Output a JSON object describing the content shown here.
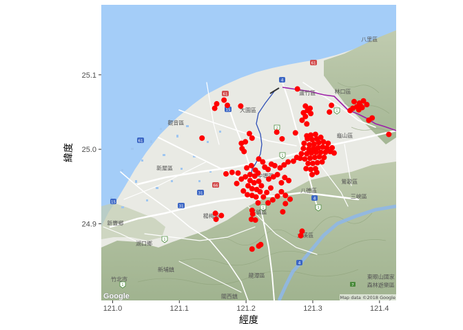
{
  "axes": {
    "x_title": "經度",
    "y_title": "緯度",
    "x_ticks": [
      121.0,
      121.1,
      121.2,
      121.3,
      121.4
    ],
    "x_tick_labels": [
      "121.0",
      "121.1",
      "121.2",
      "121.3",
      "121.4"
    ],
    "y_ticks": [
      24.9,
      25.0,
      25.1
    ],
    "y_tick_labels": [
      "24.9",
      "25.0",
      "25.1"
    ],
    "xlim": [
      120.983,
      121.425
    ],
    "ylim": [
      24.797,
      25.194
    ]
  },
  "basemap": {
    "attribution": "Map data ©2018 Google",
    "logo": "Google",
    "colors": {
      "sea": "#a4cdf8",
      "land": "#e9eae4",
      "hills": "#a9bb95",
      "road": "#ffffff",
      "river": "#2e4fb6",
      "rail": "#9d1ea8",
      "points": "#ff0000"
    },
    "place_labels": [
      {
        "text": "八里區",
        "lon": 121.385,
        "lat": 25.145
      },
      {
        "text": "林口區",
        "lon": 121.345,
        "lat": 25.075
      },
      {
        "text": "龜山區",
        "lon": 121.348,
        "lat": 25.016
      },
      {
        "text": "大園區",
        "lon": 121.203,
        "lat": 25.05
      },
      {
        "text": "蘆竹區",
        "lon": 121.292,
        "lat": 25.073
      },
      {
        "text": "觀音區",
        "lon": 121.095,
        "lat": 25.033
      },
      {
        "text": "新屋區",
        "lon": 121.078,
        "lat": 24.972
      },
      {
        "text": "中壢區",
        "lon": 121.229,
        "lat": 24.962
      },
      {
        "text": "八德區",
        "lon": 121.294,
        "lat": 24.942
      },
      {
        "text": "鶯歌區",
        "lon": 121.355,
        "lat": 24.954
      },
      {
        "text": "三峽區",
        "lon": 121.369,
        "lat": 24.934
      },
      {
        "text": "楊梅區",
        "lon": 121.148,
        "lat": 24.908
      },
      {
        "text": "平鎮區",
        "lon": 121.219,
        "lat": 24.913
      },
      {
        "text": "新豐鄉",
        "lon": 121.004,
        "lat": 24.898
      },
      {
        "text": "湖口鄉",
        "lon": 121.047,
        "lat": 24.871
      },
      {
        "text": "大溪區",
        "lon": 121.289,
        "lat": 24.882
      },
      {
        "text": "新埔鎮",
        "lon": 121.08,
        "lat": 24.836
      },
      {
        "text": "龍潭區",
        "lon": 121.216,
        "lat": 24.828
      },
      {
        "text": "關西鎮",
        "lon": 121.175,
        "lat": 24.8
      },
      {
        "text": "竹北市",
        "lon": 121.01,
        "lat": 24.823
      },
      {
        "text": "東眼山國家",
        "lon": 121.402,
        "lat": 24.826
      },
      {
        "text": "森林遊樂區",
        "lon": 121.402,
        "lat": 24.815
      }
    ]
  },
  "chart_data": {
    "type": "scatter",
    "title": "",
    "xlabel": "經度",
    "ylabel": "緯度",
    "xlim": [
      120.983,
      121.425
    ],
    "ylim": [
      24.797,
      25.194
    ],
    "grid": false,
    "legend": "none",
    "point_color": "#ff0000",
    "points": [
      [
        121.277,
        25.081
      ],
      [
        121.156,
        25.061
      ],
      [
        121.167,
        25.066
      ],
      [
        121.172,
        25.059
      ],
      [
        121.153,
        25.055
      ],
      [
        121.192,
        25.058
      ],
      [
        121.289,
        25.058
      ],
      [
        121.292,
        25.052
      ],
      [
        121.296,
        25.055
      ],
      [
        121.286,
        25.049
      ],
      [
        121.297,
        25.048
      ],
      [
        121.289,
        25.044
      ],
      [
        121.284,
        25.039
      ],
      [
        121.291,
        25.034
      ],
      [
        121.325,
        25.05
      ],
      [
        121.328,
        25.059
      ],
      [
        121.362,
        25.064
      ],
      [
        121.366,
        25.057
      ],
      [
        121.37,
        25.062
      ],
      [
        121.372,
        25.058
      ],
      [
        121.376,
        25.065
      ],
      [
        121.36,
        25.055
      ],
      [
        121.356,
        25.052
      ],
      [
        121.369,
        25.053
      ],
      [
        121.374,
        25.056
      ],
      [
        121.381,
        25.06
      ],
      [
        121.384,
        25.039
      ],
      [
        121.389,
        25.042
      ],
      [
        121.414,
        25.02
      ],
      [
        121.134,
        25.015
      ],
      [
        121.209,
        25.015
      ],
      [
        121.205,
        25.021
      ],
      [
        121.193,
        25.008
      ],
      [
        121.199,
        25.01
      ],
      [
        121.194,
        25.001
      ],
      [
        121.197,
        24.997
      ],
      [
        121.246,
        25.023
      ],
      [
        121.254,
        25.014
      ],
      [
        121.274,
        25.022
      ],
      [
        121.291,
        25.018
      ],
      [
        121.297,
        25.019
      ],
      [
        121.304,
        25.02
      ],
      [
        121.292,
        25.014
      ],
      [
        121.299,
        25.013
      ],
      [
        121.306,
        25.014
      ],
      [
        121.312,
        25.016
      ],
      [
        121.287,
        25.008
      ],
      [
        121.295,
        25.006
      ],
      [
        121.302,
        25.007
      ],
      [
        121.309,
        25.009
      ],
      [
        121.316,
        25.01
      ],
      [
        121.323,
        25.008
      ],
      [
        121.286,
        25.001
      ],
      [
        121.294,
        25.0
      ],
      [
        121.301,
        25.001
      ],
      [
        121.308,
        25.002
      ],
      [
        121.315,
        25.003
      ],
      [
        121.321,
        25.002
      ],
      [
        121.329,
        25.002
      ],
      [
        121.283,
        24.994
      ],
      [
        121.291,
        24.994
      ],
      [
        121.298,
        24.995
      ],
      [
        121.305,
        24.996
      ],
      [
        121.312,
        24.996
      ],
      [
        121.319,
        24.996
      ],
      [
        121.326,
        24.997
      ],
      [
        121.332,
        24.995
      ],
      [
        121.281,
        24.988
      ],
      [
        121.288,
        24.987
      ],
      [
        121.296,
        24.988
      ],
      [
        121.303,
        24.989
      ],
      [
        121.31,
        24.99
      ],
      [
        121.317,
        24.989
      ],
      [
        121.293,
        24.981
      ],
      [
        121.3,
        24.981
      ],
      [
        121.307,
        24.982
      ],
      [
        121.314,
        24.983
      ],
      [
        121.29,
        24.974
      ],
      [
        121.297,
        24.973
      ],
      [
        121.304,
        24.974
      ],
      [
        121.299,
        24.966
      ],
      [
        121.306,
        24.969
      ],
      [
        121.276,
        24.989
      ],
      [
        121.271,
        24.984
      ],
      [
        121.263,
        24.983
      ],
      [
        121.257,
        24.979
      ],
      [
        121.251,
        24.975
      ],
      [
        121.243,
        24.978
      ],
      [
        121.233,
        24.973
      ],
      [
        121.238,
        24.98
      ],
      [
        121.201,
        24.975
      ],
      [
        121.208,
        24.978
      ],
      [
        121.214,
        24.972
      ],
      [
        121.206,
        24.966
      ],
      [
        121.213,
        24.964
      ],
      [
        121.218,
        24.968
      ],
      [
        121.199,
        24.963
      ],
      [
        121.206,
        24.958
      ],
      [
        121.212,
        24.955
      ],
      [
        121.219,
        24.957
      ],
      [
        121.223,
        24.951
      ],
      [
        121.203,
        24.951
      ],
      [
        121.209,
        24.947
      ],
      [
        121.216,
        24.946
      ],
      [
        121.221,
        24.943
      ],
      [
        121.196,
        24.944
      ],
      [
        121.202,
        24.939
      ],
      [
        121.209,
        24.938
      ],
      [
        121.215,
        24.936
      ],
      [
        121.218,
        24.928
      ],
      [
        121.226,
        24.936
      ],
      [
        121.231,
        24.942
      ],
      [
        121.237,
        24.948
      ],
      [
        121.234,
        24.96
      ],
      [
        121.241,
        24.963
      ],
      [
        121.247,
        24.966
      ],
      [
        121.253,
        24.955
      ],
      [
        121.258,
        24.962
      ],
      [
        121.264,
        24.958
      ],
      [
        121.253,
        24.943
      ],
      [
        121.259,
        24.938
      ],
      [
        121.247,
        24.937
      ],
      [
        121.24,
        24.932
      ],
      [
        121.233,
        24.928
      ],
      [
        121.17,
        24.967
      ],
      [
        121.179,
        24.969
      ],
      [
        121.188,
        24.968
      ],
      [
        121.193,
        24.96
      ],
      [
        121.186,
        24.954
      ],
      [
        121.228,
        24.976
      ],
      [
        121.225,
        24.983
      ],
      [
        121.219,
        24.987
      ],
      [
        121.266,
        24.933
      ],
      [
        121.259,
        24.927
      ],
      [
        121.154,
        24.914
      ],
      [
        121.155,
        24.906
      ],
      [
        121.163,
        24.911
      ],
      [
        121.209,
        24.918
      ],
      [
        121.21,
        24.913
      ],
      [
        121.214,
        24.905
      ],
      [
        121.208,
        24.906
      ],
      [
        121.255,
        24.916
      ],
      [
        121.284,
        24.89
      ],
      [
        121.282,
        24.884
      ],
      [
        121.222,
        24.872
      ],
      [
        121.219,
        24.87
      ],
      [
        121.209,
        24.866
      ]
    ]
  }
}
